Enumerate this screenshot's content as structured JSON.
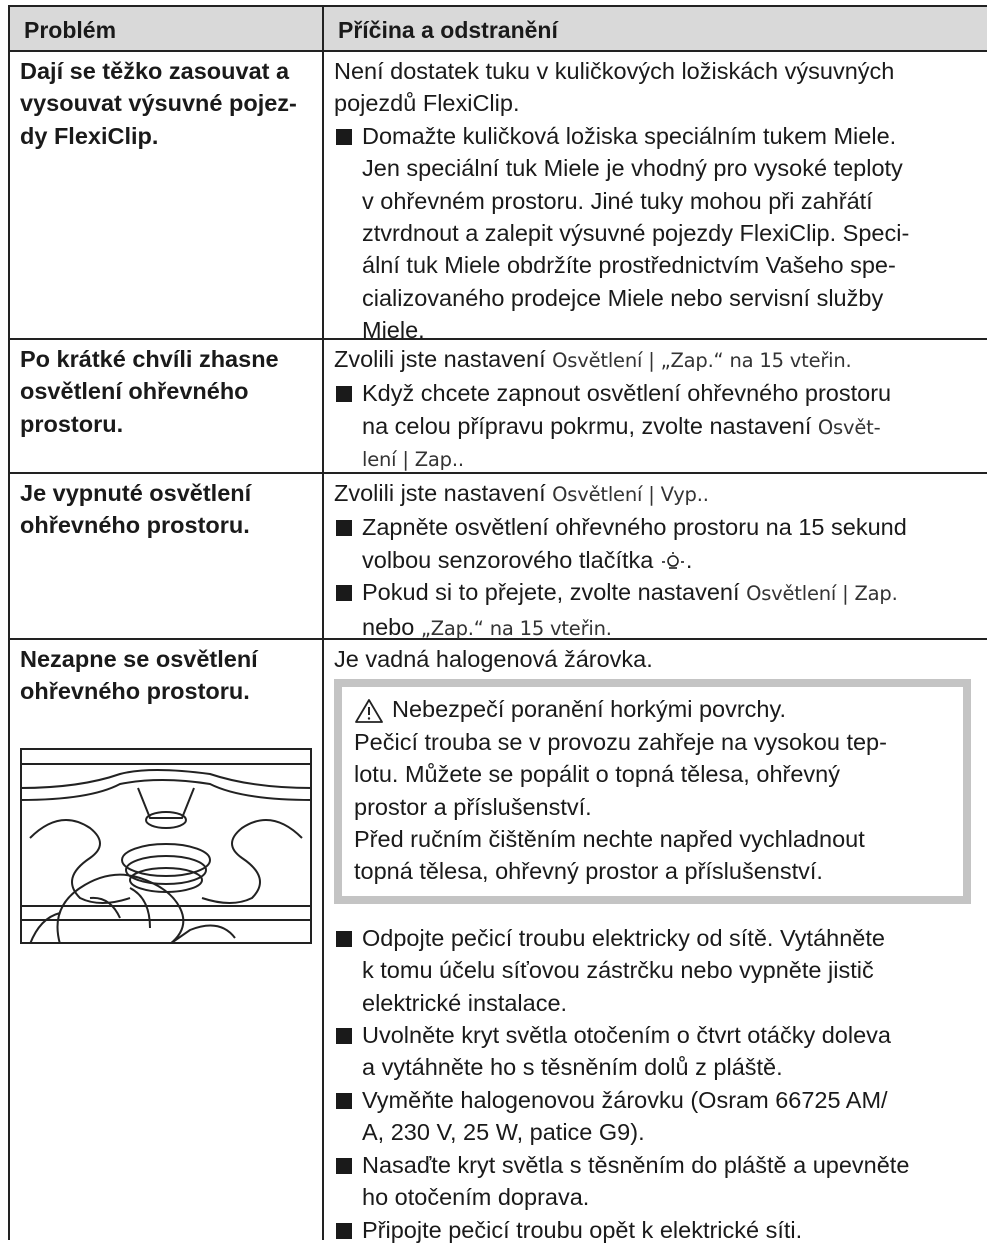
{
  "header": {
    "problem": "Problém",
    "cause": "Příčina a odstranění"
  },
  "rows": [
    {
      "problem": [
        "Dají se těžko zasouvat a",
        "vysouvat výsuvné pojez-",
        "dy FlexiClip."
      ],
      "cause": {
        "intro": [
          "Není dostatek tuku v kuličkových ložiskách výsuvných",
          "pojezdů FlexiClip."
        ],
        "steps": [
          [
            "Domažte kuličková ložiska speciálním tukem Miele.",
            "Jen speciální tuk Miele je vhodný pro vysoké teploty",
            "v ohřevném prostoru. Jiné tuky mohou při zahřátí",
            "ztvrdnout a zalepit výsuvné pojezdy FlexiClip. Speci-",
            "ální tuk Miele obdržíte prostřednictvím Vašeho spe-",
            "cializovaného prodejce Miele nebo servisní služby",
            "Miele."
          ]
        ]
      }
    },
    {
      "problem": [
        "Po krátké chvíli zhasne",
        "osvětlení ohřevného",
        "prostoru."
      ],
      "cause": {
        "intro": [
          [
            "Zvolili jste nastavení ",
            "Osvětlení | „Zap.“ na 15 vteřin."
          ]
        ],
        "steps": [
          [
            "Když chcete zapnout osvětlení ohřevného prostoru",
            [
              "na celou přípravu pokrmu, zvolte nastavení ",
              "Osvět-"
            ],
            "lení | Zap.."
          ]
        ]
      }
    },
    {
      "problem": [
        "Je vypnuté osvětlení",
        "ohřevného prostoru."
      ],
      "cause": {
        "intro": [
          [
            "Zvolili jste nastavení ",
            "Osvětlení | Vyp.."
          ]
        ],
        "steps": [
          [
            "Zapněte osvětlení ohřevného prostoru na 15 sekund",
            [
              "volbou senzorového tlačítka ",
              "."
            ]
          ],
          [
            [
              "Pokud si to přejete, zvolte nastavení ",
              "Osvětlení | Zap."
            ],
            [
              "nebo ",
              "„Zap.“ na 15 vteřin."
            ]
          ]
        ]
      }
    },
    {
      "problem": [
        "Nezapne se osvětlení",
        "ohřevného prostoru."
      ],
      "cause": {
        "intro": [
          "Je vadná halogenová žárovka."
        ],
        "warning": {
          "title": "Nebezpečí poranění horkými povrchy.",
          "text": [
            "Pečicí trouba se v provozu zahřeje na vysokou tep-",
            "lotu. Můžete se popálit o topná tělesa, ohřevný",
            "prostor a příslušenství.",
            "Před ručním čištěním nechte napřed vychladnout",
            "topná tělesa, ohřevný prostor a příslušenství."
          ]
        },
        "steps": [
          [
            "Odpojte pečicí troubu elektricky od sítě. Vytáhněte",
            "k tomu účelu síťovou zástrčku nebo vypněte jistič",
            "elektrické instalace."
          ],
          [
            "Uvolněte kryt světla otočením o čtvrt otáčky doleva",
            "a vytáhněte ho s těsněním dolů z pláště."
          ],
          [
            "Vyměňte halogenovou žárovku (Osram 66725 AM/",
            "A, 230 V, 25 W, patice G9)."
          ],
          [
            "Nasaďte kryt světla s těsněním do pláště a upevněte",
            "ho otočením doprava."
          ],
          [
            "Připojte pečicí troubu opět k elektrické síti."
          ]
        ]
      }
    }
  ]
}
